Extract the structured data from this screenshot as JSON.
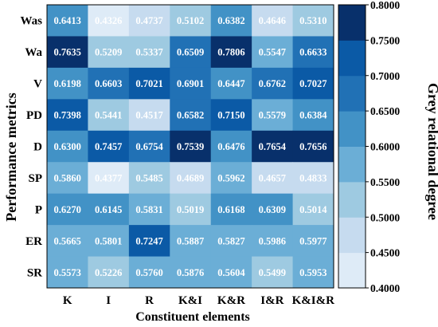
{
  "chart_data": {
    "type": "heatmap",
    "xlabel": "Constituent elements",
    "ylabel": "Performance metrics",
    "colorbar_label": "Grey relational degree",
    "x_categories": [
      "K",
      "I",
      "R",
      "K&I",
      "K&R",
      "I&R",
      "K&I&R"
    ],
    "y_categories": [
      "Was",
      "Wa",
      "V",
      "PD",
      "D",
      "SP",
      "P",
      "ER",
      "SR"
    ],
    "values": [
      [
        0.6413,
        0.4326,
        0.4737,
        0.5102,
        0.6382,
        0.4646,
        0.531
      ],
      [
        0.7635,
        0.5209,
        0.5337,
        0.6509,
        0.7806,
        0.5547,
        0.6633
      ],
      [
        0.6198,
        0.6603,
        0.7021,
        0.6901,
        0.6447,
        0.6762,
        0.7027
      ],
      [
        0.7398,
        0.5441,
        0.4517,
        0.6582,
        0.715,
        0.5579,
        0.6384
      ],
      [
        0.63,
        0.7457,
        0.6754,
        0.7539,
        0.6476,
        0.7654,
        0.7656
      ],
      [
        0.586,
        0.4377,
        0.5485,
        0.4689,
        0.5962,
        0.4657,
        0.4833
      ],
      [
        0.627,
        0.6145,
        0.5831,
        0.5019,
        0.6168,
        0.6309,
        0.5014
      ],
      [
        0.5665,
        0.5801,
        0.7247,
        0.5887,
        0.5827,
        0.5986,
        0.5977
      ],
      [
        0.5573,
        0.5226,
        0.576,
        0.5876,
        0.5604,
        0.5499,
        0.5953
      ]
    ],
    "value_labels": [
      [
        "0.6413",
        "0.4326",
        "0.4737",
        "0.5102",
        "0.6382",
        "0.4646",
        "0.5310"
      ],
      [
        "0.7635",
        "0.5209",
        "0.5337",
        "0.6509",
        "0.7806",
        "0.5547",
        "0.6633"
      ],
      [
        "0.6198",
        "0.6603",
        "0.7021",
        "0.6901",
        "0.6447",
        "0.6762",
        "0.7027"
      ],
      [
        "0.7398",
        "0.5441",
        "0.4517",
        "0.6582",
        "0.7150",
        "0.5579",
        "0.6384"
      ],
      [
        "0.6300",
        "0.7457",
        "0.6754",
        "0.7539",
        "0.6476",
        "0.7654",
        "0.7656"
      ],
      [
        "0.5860",
        "0.4377",
        "0.5485",
        "0.4689",
        "0.5962",
        "0.4657",
        "0.4833"
      ],
      [
        "0.6270",
        "0.6145",
        "0.5831",
        "0.5019",
        "0.6168",
        "0.6309",
        "0.5014"
      ],
      [
        "0.5665",
        "0.5801",
        "0.7247",
        "0.5887",
        "0.5827",
        "0.5986",
        "0.5977"
      ],
      [
        "0.5573",
        "0.5226",
        "0.5760",
        "0.5876",
        "0.5604",
        "0.5499",
        "0.5953"
      ]
    ],
    "colorbar": {
      "range": [
        0.4,
        0.8
      ],
      "ticks": [
        0.4,
        0.45,
        0.5,
        0.55,
        0.6,
        0.65,
        0.7,
        0.75,
        0.8
      ],
      "tick_labels": [
        "0.4000",
        "0.4500",
        "0.5000",
        "0.5500",
        "0.6000",
        "0.6500",
        "0.7000",
        "0.7500",
        "0.8000"
      ],
      "colors": [
        "#deebf7",
        "#c6dbef",
        "#9ecae1",
        "#6baed6",
        "#4292c6",
        "#2171b5",
        "#0b5aa6",
        "#08306b"
      ]
    },
    "grid": false
  }
}
